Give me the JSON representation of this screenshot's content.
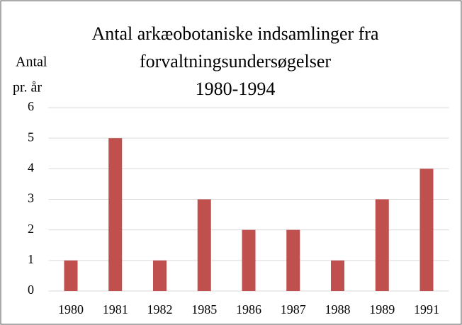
{
  "chart_data": {
    "type": "bar",
    "title": [
      "Antal arkæobotaniske indsamlinger fra",
      "forvaltningsundersøgelser",
      "1980-1994"
    ],
    "y_label": [
      "Antal",
      "pr. år"
    ],
    "categories": [
      "1980",
      "1981",
      "1982",
      "1985",
      "1986",
      "1987",
      "1988",
      "1989",
      "1991"
    ],
    "values": [
      1,
      5,
      1,
      3,
      2,
      2,
      1,
      3,
      4
    ],
    "color": "#c0504d",
    "ylim": [
      0,
      6
    ],
    "yticks": [
      0,
      1,
      2,
      3,
      4,
      5,
      6
    ],
    "grid": true
  }
}
